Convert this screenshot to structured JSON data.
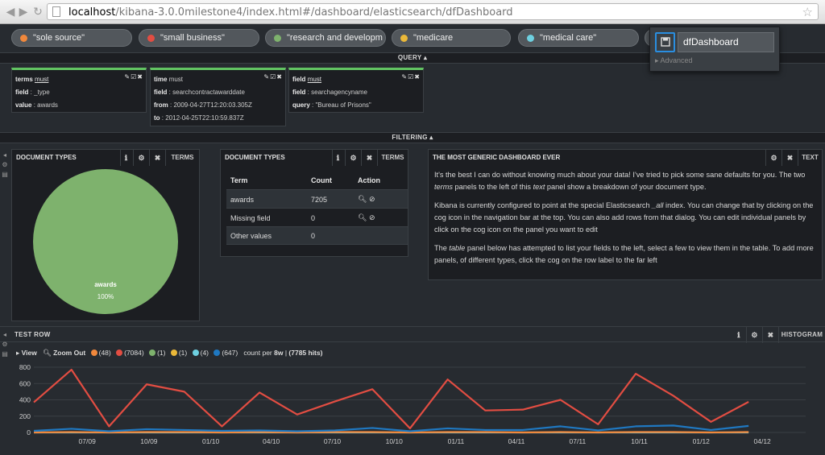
{
  "browser": {
    "url_host": "localhost",
    "url_path": "/kibana-3.0.0milestone4/index.html#/dashboard/elasticsearch/dfDashboard"
  },
  "pills": [
    {
      "label": "\"sole source\"",
      "color": "#f0883c"
    },
    {
      "label": "\"small business\"",
      "color": "#e24d42"
    },
    {
      "label": "\"research and developm",
      "color": "#7eb26d"
    },
    {
      "label": "\"medicare",
      "color": "#eab839"
    },
    {
      "label": "\"medical care\"",
      "color": "#6ed0e0"
    },
    {
      "label": "",
      "color": "#52575c"
    }
  ],
  "save": {
    "value": "dfDashboard",
    "advanced": "Advanced"
  },
  "query_section": {
    "title": "QUERY ▴"
  },
  "filtering_section": {
    "title": "FILTERING ▴"
  },
  "filters": [
    {
      "key_label": "terms",
      "mode": "must",
      "lines": [
        {
          "k": "field",
          "v": " : _type"
        },
        {
          "k": "value",
          "v": " : awards"
        }
      ]
    },
    {
      "key_label": "time",
      "mode": "must",
      "lines": [
        {
          "k": "field",
          "v": " : searchcontractawarddate"
        },
        {
          "k": "from",
          "v": " : 2009-04-27T12:20:03.305Z"
        },
        {
          "k": "to",
          "v": " : 2012-04-25T22:10:59.837Z"
        }
      ]
    },
    {
      "key_label": "field",
      "mode": "must",
      "lines": [
        {
          "k": "field",
          "v": " : searchagencyname"
        },
        {
          "k": "query",
          "v": " : \"Bureau of Prisons\""
        }
      ]
    }
  ],
  "panels": {
    "pie": {
      "title": "DOCUMENT TYPES",
      "type_label": "TERMS",
      "slice_label": "awards",
      "slice_pct": "100%",
      "slice_color": "#7eb26d"
    },
    "table": {
      "title": "DOCUMENT TYPES",
      "type_label": "TERMS",
      "headers": {
        "term": "Term",
        "count": "Count",
        "action": "Action"
      },
      "rows": [
        {
          "term": "awards",
          "count": "7205",
          "has_action": true
        },
        {
          "term": "Missing field",
          "count": "0",
          "has_action": true
        },
        {
          "term": "Other values",
          "count": "0",
          "has_action": false
        }
      ]
    },
    "text": {
      "title": "THE MOST GENERIC DASHBOARD EVER",
      "type_label": "TEXT",
      "p1a": "It's the best I can do without knowing much about your data! I've tried to pick some sane defaults for you. The two ",
      "p1_em1": "terms",
      "p1b": " panels to the left of this ",
      "p1_em2": "text",
      "p1c": " panel show a breakdown of your document type.",
      "p2a": "Kibana is currently configured to point at the special Elasticsearch ",
      "p2_em": "_all",
      "p2b": " index. You can change that by clicking on the cog icon in the navigation bar at the top. You can also add rows from that dialog. You can edit individual panels by click on the cog icon on the panel you want to edit",
      "p3a": "The ",
      "p3_em": "table",
      "p3b": " panel below has attempted to list your fields to the left, select a few to view them in the table. To add more panels, of different types, click the cog on the row label to the far left"
    }
  },
  "test_row": {
    "title": "TEST ROW",
    "type_label": "HISTOGRAM"
  },
  "histogram": {
    "view_label": "View",
    "zoom_label": "Zoom Out",
    "legend": [
      {
        "count": "(48)",
        "color": "#f0883c"
      },
      {
        "count": "(7084)",
        "color": "#e24d42"
      },
      {
        "count": "(1)",
        "color": "#7eb26d"
      },
      {
        "count": "(1)",
        "color": "#eab839"
      },
      {
        "count": "(4)",
        "color": "#6ed0e0"
      },
      {
        "count": "(647)",
        "color": "#1f78c1"
      }
    ],
    "count_per": "count per ",
    "interval": "8w",
    "hits": "(7785 hits)"
  },
  "chart_data": {
    "type": "line",
    "x": [
      "2009-04-27",
      "2009-06-22",
      "2009-08-17",
      "2009-10-12",
      "2009-12-07",
      "2010-02-01",
      "2010-03-29",
      "2010-05-24",
      "2010-07-19",
      "2010-09-13",
      "2010-11-08",
      "2011-01-03",
      "2011-02-28",
      "2011-04-25",
      "2011-06-20",
      "2011-08-15",
      "2011-10-10",
      "2011-12-05",
      "2012-01-30",
      "2012-03-26"
    ],
    "series": [
      {
        "color": "#e24d42",
        "values": [
          370,
          770,
          75,
          590,
          500,
          75,
          490,
          220,
          380,
          530,
          50,
          650,
          270,
          280,
          400,
          100,
          720,
          450,
          130,
          375
        ]
      },
      {
        "color": "#1f78c1",
        "values": [
          20,
          45,
          15,
          40,
          30,
          20,
          25,
          15,
          25,
          55,
          15,
          50,
          30,
          30,
          75,
          25,
          75,
          85,
          30,
          80
        ]
      },
      {
        "color": "#f0883c",
        "values": [
          0,
          5,
          0,
          5,
          5,
          0,
          5,
          0,
          5,
          5,
          0,
          5,
          5,
          0,
          5,
          0,
          5,
          5,
          0,
          5
        ]
      },
      {
        "color": "#6ed0e0",
        "values": [
          0,
          0,
          0,
          0,
          0,
          0,
          0,
          0,
          0,
          0,
          0,
          0,
          0,
          0,
          0,
          0,
          0,
          0,
          0,
          0
        ]
      }
    ],
    "ylim": [
      0,
      800
    ],
    "yticks": [
      "0",
      "200",
      "400",
      "600",
      "800"
    ],
    "xticks": [
      "07/09",
      "10/09",
      "01/10",
      "04/10",
      "07/10",
      "10/10",
      "01/11",
      "04/11",
      "07/11",
      "10/11",
      "01/12",
      "04/12"
    ],
    "grid": true
  }
}
